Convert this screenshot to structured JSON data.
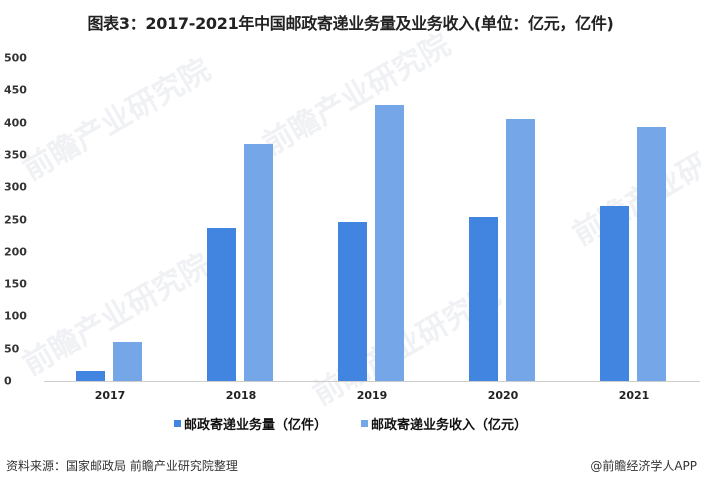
{
  "title": "图表3：2017-2021年中国邮政寄递业务量及业务收入(单位：亿元，亿件)",
  "colors": {
    "volume": "#4285e0",
    "revenue": "#74a6e8",
    "axis": "#cccccc"
  },
  "chart_data": {
    "type": "bar",
    "title": "图表3：2017-2021年中国邮政寄递业务量及业务收入(单位：亿元，亿件)",
    "categories": [
      "2017",
      "2018",
      "2019",
      "2020",
      "2021"
    ],
    "series": [
      {
        "name": "邮政寄递业务量（亿件）",
        "values": [
          15,
          237,
          246,
          254,
          271
        ]
      },
      {
        "name": "邮政寄递业务收入（亿元）",
        "values": [
          60,
          367,
          427,
          406,
          393
        ]
      }
    ],
    "xlabel": "",
    "ylabel": "",
    "ylim": [
      0,
      500
    ],
    "yticks": [
      "0",
      "50",
      "100",
      "150",
      "200",
      "250",
      "300",
      "350",
      "400",
      "450",
      "500"
    ],
    "grid": false,
    "legend_position": "bottom"
  },
  "legend": {
    "items": [
      {
        "label": "邮政寄递业务量（亿件）"
      },
      {
        "label": "邮政寄递业务收入（亿元）"
      }
    ]
  },
  "footer": {
    "source": "资料来源：国家邮政局 前瞻产业研究院整理",
    "credit": "@前瞻经济学人APP"
  },
  "watermark": {
    "text": "前瞻产业研究院"
  }
}
